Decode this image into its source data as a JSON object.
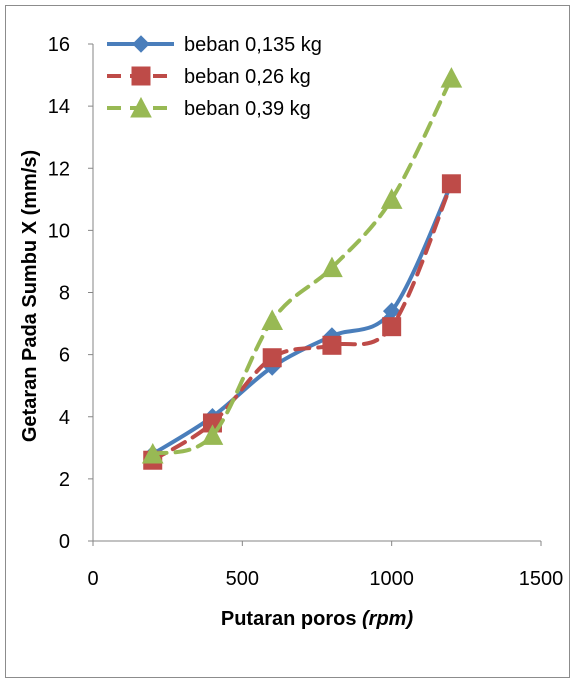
{
  "chart_data": {
    "type": "line",
    "xlabel_main": "Putaran poros ",
    "xlabel_unit": "(rpm)",
    "ylabel": "Getaran Pada Sumbu X (mm/s)",
    "xlim": [
      0,
      1500
    ],
    "ylim": [
      0,
      16
    ],
    "x_ticks": [
      0,
      500,
      1000,
      1500
    ],
    "y_ticks": [
      0,
      2,
      4,
      6,
      8,
      10,
      12,
      14,
      16
    ],
    "grid": false,
    "legend_position": "top-left",
    "x": [
      200,
      400,
      600,
      800,
      1000,
      1200
    ],
    "series": [
      {
        "name": "beban 0,135 kg",
        "values": [
          2.8,
          4.0,
          5.6,
          6.6,
          7.4,
          11.5
        ],
        "color": "#4A7EBB",
        "marker": "diamond",
        "line_style": "solid"
      },
      {
        "name": "beban 0,26 kg",
        "values": [
          2.6,
          3.8,
          5.9,
          6.3,
          6.9,
          11.5
        ],
        "color": "#BE4B48",
        "marker": "square",
        "line_style": "dashed"
      },
      {
        "name": "beban 0,39 kg",
        "values": [
          2.8,
          3.4,
          7.1,
          8.8,
          11.0,
          14.9
        ],
        "color": "#98B954",
        "marker": "triangle",
        "line_style": "dashed"
      }
    ]
  }
}
